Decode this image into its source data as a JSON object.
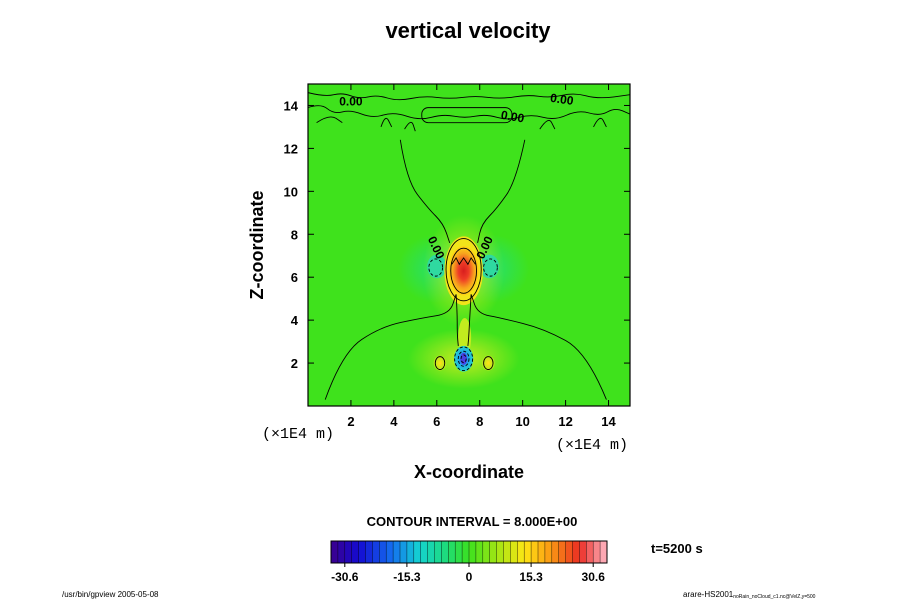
{
  "chart_data": {
    "type": "heatmap",
    "title": "vertical velocity",
    "xlabel": "X-coordinate",
    "ylabel": "Z-coordinate",
    "x_unit": "(×1E4 m)",
    "y_unit": "(×1E4 m)",
    "xlim": [
      0,
      15
    ],
    "ylim": [
      0,
      15
    ],
    "xticks": [
      2,
      4,
      6,
      8,
      10,
      12,
      14
    ],
    "yticks": [
      2,
      4,
      6,
      8,
      10,
      12,
      14
    ],
    "contour_interval_text": "CONTOUR INTERVAL = 8.000E+00",
    "time_text": "t=5200 s",
    "colorbar": {
      "range": [
        -34,
        34
      ],
      "ticks": [
        -30.6,
        -15.3,
        0,
        15.3,
        30.6
      ],
      "tick_labels": [
        "-30.6",
        "-15.3",
        "0",
        "15.3",
        "30.6"
      ]
    },
    "contour_labels": [
      {
        "text": "0.00",
        "x": 2.0,
        "z": 14.0,
        "angle": 0
      },
      {
        "text": "0.00",
        "x": 9.5,
        "z": 13.3,
        "angle": 10
      },
      {
        "text": "0.00",
        "x": 11.8,
        "z": 14.1,
        "angle": 8
      },
      {
        "text": "0.00",
        "x": 5.8,
        "z": 7.3,
        "angle": 65
      },
      {
        "text": "0.00",
        "x": 8.4,
        "z": 7.3,
        "angle": -65
      }
    ],
    "features": [
      {
        "kind": "updraft",
        "x": 7.25,
        "z": 6.3,
        "peak": 34
      },
      {
        "kind": "downdraft",
        "x": 7.25,
        "z": 2.2,
        "peak": -22
      },
      {
        "kind": "updraft",
        "x": 7.3,
        "z": 2.8,
        "peak": 7
      },
      {
        "kind": "updraft",
        "x": 6.1,
        "z": 2.0,
        "peak": 10
      },
      {
        "kind": "updraft",
        "x": 8.4,
        "z": 2.0,
        "peak": 10
      },
      {
        "kind": "downdraft",
        "x": 6.0,
        "z": 6.5,
        "peak": -8
      },
      {
        "kind": "downdraft",
        "x": 8.4,
        "z": 6.5,
        "peak": -8
      }
    ]
  },
  "footer": {
    "left": "/usr/bin/gpview 2005-05-08",
    "right_main": "arare-HS2001",
    "right_sub": "noRain_noCloud_c1.nc@VelZ,y=500"
  }
}
